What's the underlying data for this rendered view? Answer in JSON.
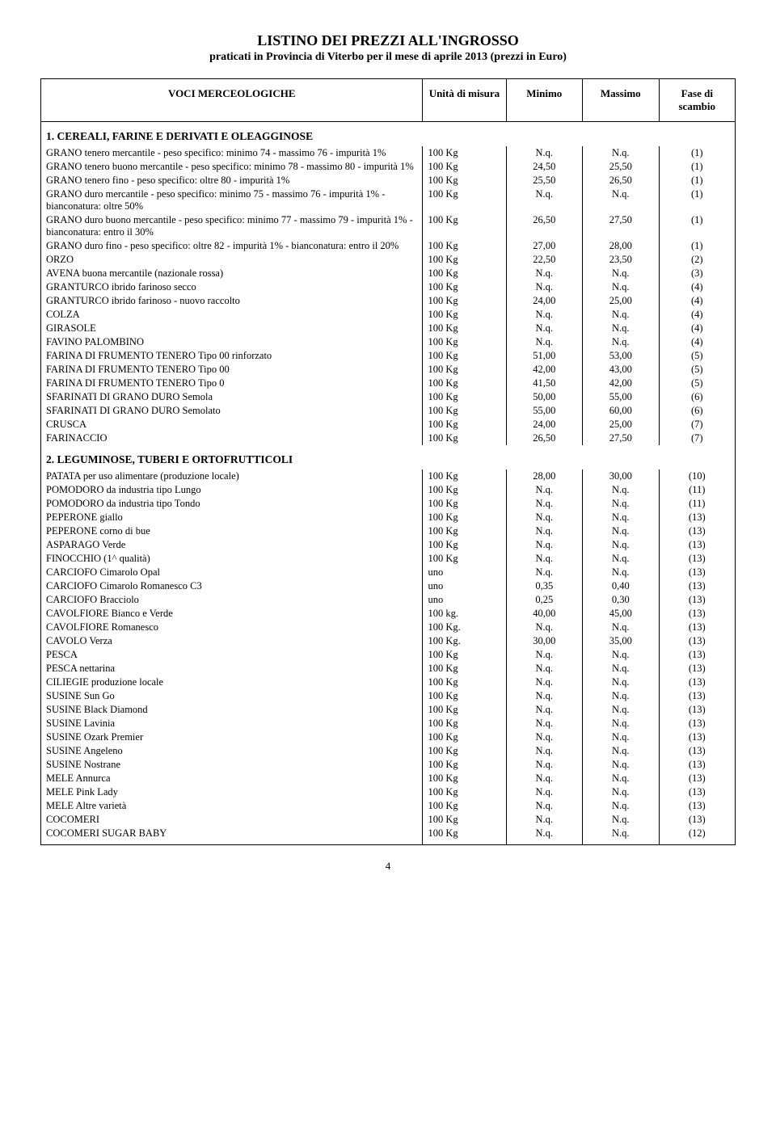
{
  "title": "LISTINO DEI PREZZI ALL'INGROSSO",
  "subtitle": "praticati in Provincia di Viterbo per il mese di aprile 2013 (prezzi in Euro)",
  "headers": {
    "voci": "VOCI MERCEOLOGICHE",
    "unita": "Unità di misura",
    "minimo": "Minimo",
    "massimo": "Massimo",
    "fase": "Fase di scambio"
  },
  "sections": [
    {
      "title": "1.    CEREALI, FARINE E DERIVATI E OLEAGGINOSE",
      "rows": [
        {
          "label": "GRANO tenero mercantile - peso specifico: minimo 74 - massimo 76 - impurità 1%",
          "unit": "100 Kg",
          "min": "N.q.",
          "max": "N.q.",
          "fase": "(1)"
        },
        {
          "label": "GRANO tenero buono mercantile - peso specifico: minimo 78 - massimo 80 - impurità 1%",
          "unit": "100 Kg",
          "min": "24,50",
          "max": "25,50",
          "fase": "(1)"
        },
        {
          "label": "GRANO tenero fino - peso specifico: oltre 80 - impurità 1%",
          "unit": "100 Kg",
          "min": "25,50",
          "max": "26,50",
          "fase": "(1)"
        },
        {
          "label": "GRANO duro mercantile - peso specifico: minimo 75 - massimo 76 - impurità 1% - bianconatura: oltre 50%",
          "unit": "100 Kg",
          "min": "N.q.",
          "max": "N.q.",
          "fase": "(1)"
        },
        {
          "label": "GRANO duro buono mercantile - peso specifico: minimo 77 - massimo 79 - impurità 1% - bianconatura: entro il 30%",
          "unit": "100 Kg",
          "min": "26,50",
          "max": "27,50",
          "fase": "(1)"
        },
        {
          "label": "GRANO duro fino - peso specifico: oltre 82 - impurità 1% - bianconatura: entro il 20%",
          "unit": "100 Kg",
          "min": "27,00",
          "max": "28,00",
          "fase": "(1)"
        },
        {
          "label": "ORZO",
          "unit": "100 Kg",
          "min": "22,50",
          "max": "23,50",
          "fase": "(2)"
        },
        {
          "label": "AVENA buona mercantile (nazionale rossa)",
          "unit": "100 Kg",
          "min": "N.q.",
          "max": "N.q.",
          "fase": "(3)"
        },
        {
          "label": "GRANTURCO ibrido farinoso secco",
          "unit": "100 Kg",
          "min": "N.q.",
          "max": "N.q.",
          "fase": "(4)"
        },
        {
          "label": "GRANTURCO ibrido farinoso - nuovo raccolto",
          "unit": "100 Kg",
          "min": "24,00",
          "max": "25,00",
          "fase": "(4)"
        },
        {
          "label": "COLZA",
          "unit": "100 Kg",
          "min": "N.q.",
          "max": "N.q.",
          "fase": "(4)"
        },
        {
          "label": "GIRASOLE",
          "unit": "100 Kg",
          "min": "N.q.",
          "max": "N.q.",
          "fase": "(4)"
        },
        {
          "label": "FAVINO PALOMBINO",
          "unit": "100 Kg",
          "min": "N.q.",
          "max": "N.q.",
          "fase": "(4)"
        },
        {
          "label": "FARINA DI FRUMENTO TENERO Tipo 00 rinforzato",
          "unit": "100 Kg",
          "min": "51,00",
          "max": "53,00",
          "fase": "(5)"
        },
        {
          "label": "FARINA DI FRUMENTO TENERO Tipo 00",
          "unit": "100 Kg",
          "min": "42,00",
          "max": "43,00",
          "fase": "(5)"
        },
        {
          "label": "FARINA DI FRUMENTO TENERO Tipo 0",
          "unit": "100 Kg",
          "min": "41,50",
          "max": "42,00",
          "fase": "(5)"
        },
        {
          "label": "SFARINATI DI GRANO DURO Semola",
          "unit": "100 Kg",
          "min": "50,00",
          "max": "55,00",
          "fase": "(6)"
        },
        {
          "label": "SFARINATI DI GRANO DURO Semolato",
          "unit": "100 Kg",
          "min": "55,00",
          "max": "60,00",
          "fase": "(6)"
        },
        {
          "label": "CRUSCA",
          "unit": "100 Kg",
          "min": "24,00",
          "max": "25,00",
          "fase": "(7)"
        },
        {
          "label": "FARINACCIO",
          "unit": "100 Kg",
          "min": "26,50",
          "max": "27,50",
          "fase": "(7)"
        }
      ]
    },
    {
      "title": "2.    LEGUMINOSE, TUBERI E ORTOFRUTTICOLI",
      "rows": [
        {
          "label": "PATATA per uso alimentare (produzione locale)",
          "unit": "100 Kg",
          "min": "28,00",
          "max": "30,00",
          "fase": "(10)"
        },
        {
          "label": "POMODORO da industria tipo Lungo",
          "unit": "100 Kg",
          "min": "N.q.",
          "max": "N.q.",
          "fase": "(11)"
        },
        {
          "label": "POMODORO da industria tipo Tondo",
          "unit": "100 Kg",
          "min": "N.q.",
          "max": "N.q.",
          "fase": "(11)"
        },
        {
          "label": "PEPERONE giallo",
          "unit": "100 Kg",
          "min": "N.q.",
          "max": "N.q.",
          "fase": "(13)"
        },
        {
          "label": "PEPERONE corno di bue",
          "unit": "100 Kg",
          "min": "N.q.",
          "max": "N.q.",
          "fase": "(13)"
        },
        {
          "label": "ASPARAGO Verde",
          "unit": "100 Kg",
          "min": "N.q.",
          "max": "N.q.",
          "fase": "(13)"
        },
        {
          "label": "FINOCCHIO (1^ qualità)",
          "unit": "100 Kg",
          "min": "N.q.",
          "max": "N.q.",
          "fase": "(13)"
        },
        {
          "label": "CARCIOFO Cimarolo Opal",
          "unit": "uno",
          "min": "N.q.",
          "max": "N.q.",
          "fase": "(13)"
        },
        {
          "label": "CARCIOFO Cimarolo Romanesco C3",
          "unit": "uno",
          "min": "0,35",
          "max": "0,40",
          "fase": "(13)"
        },
        {
          "label": "CARCIOFO Bracciolo",
          "unit": "uno",
          "min": "0,25",
          "max": "0,30",
          "fase": "(13)"
        },
        {
          "label": "CAVOLFIORE Bianco e Verde",
          "unit": "100 kg.",
          "min": "40,00",
          "max": "45,00",
          "fase": "(13)"
        },
        {
          "label": "CAVOLFIORE Romanesco",
          "unit": "100 Kg.",
          "min": "N.q.",
          "max": "N.q.",
          "fase": "(13)"
        },
        {
          "label": "CAVOLO Verza",
          "unit": "100 Kg.",
          "min": "30,00",
          "max": "35,00",
          "fase": "(13)"
        },
        {
          "label": "PESCA",
          "unit": "100 Kg",
          "min": "N.q.",
          "max": "N.q.",
          "fase": "(13)"
        },
        {
          "label": "PESCA nettarina",
          "unit": "100 Kg",
          "min": "N.q.",
          "max": "N.q.",
          "fase": "(13)"
        },
        {
          "label": "CILIEGIE produzione locale",
          "unit": "100 Kg",
          "min": "N.q.",
          "max": "N.q.",
          "fase": "(13)"
        },
        {
          "label": "SUSINE Sun Go",
          "unit": "100 Kg",
          "min": "N.q.",
          "max": "N.q.",
          "fase": "(13)"
        },
        {
          "label": "SUSINE Black Diamond",
          "unit": "100 Kg",
          "min": "N.q.",
          "max": "N.q.",
          "fase": "(13)"
        },
        {
          "label": "SUSINE Lavinia",
          "unit": "100 Kg",
          "min": "N.q.",
          "max": "N.q.",
          "fase": "(13)"
        },
        {
          "label": "SUSINE Ozark Premier",
          "unit": "100 Kg",
          "min": "N.q.",
          "max": "N.q.",
          "fase": "(13)"
        },
        {
          "label": "SUSINE Angeleno",
          "unit": "100 Kg",
          "min": "N.q.",
          "max": "N.q.",
          "fase": "(13)"
        },
        {
          "label": "SUSINE Nostrane",
          "unit": "100 Kg",
          "min": "N.q.",
          "max": "N.q.",
          "fase": "(13)"
        },
        {
          "label": "MELE Annurca",
          "unit": "100 Kg",
          "min": "N.q.",
          "max": "N.q.",
          "fase": "(13)"
        },
        {
          "label": "MELE Pink Lady",
          "unit": "100 Kg",
          "min": "N.q.",
          "max": "N.q.",
          "fase": "(13)"
        },
        {
          "label": "MELE Altre varietà",
          "unit": "100 Kg",
          "min": "N.q.",
          "max": "N.q.",
          "fase": "(13)"
        },
        {
          "label": "COCOMERI",
          "unit": "100 Kg",
          "min": "N.q.",
          "max": "N.q.",
          "fase": "(13)"
        },
        {
          "label": "COCOMERI SUGAR BABY",
          "unit": "100 Kg",
          "min": "N.q.",
          "max": "N.q.",
          "fase": "(12)"
        }
      ]
    }
  ],
  "pagenum": "4"
}
